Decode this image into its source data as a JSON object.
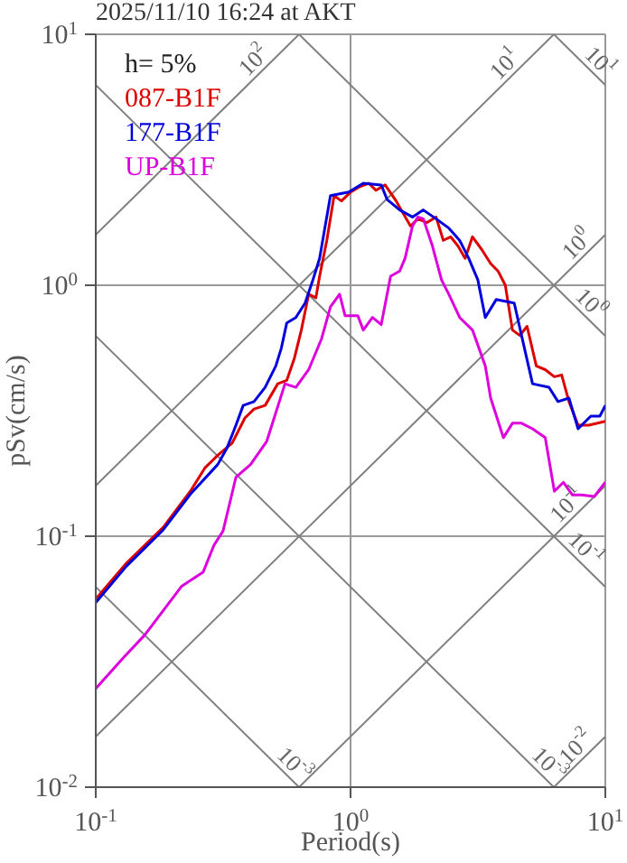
{
  "chart_data": {
    "type": "line",
    "title": "2025/11/10 16:24 at AKT",
    "xlabel": "Period(s)",
    "ylabel": "pSv(cm/s)",
    "legend_title": "h= 5%",
    "legend": "top left",
    "grid": true,
    "log": "xy",
    "xlim": [
      0.1,
      10
    ],
    "ylim": [
      0.01,
      10
    ],
    "xticks": [
      {
        "value": 0.1,
        "label": "10$^{-1}$"
      },
      {
        "value": 1,
        "label": "10$^{0}$"
      },
      {
        "value": 10,
        "label": "10$^{1}$"
      }
    ],
    "yticks": [
      {
        "value": 0.01,
        "label": "10$^{-2}$"
      },
      {
        "value": 0.1,
        "label": "10$^{-1}$"
      },
      {
        "value": 1,
        "label": "10$^{0}$"
      },
      {
        "value": 10,
        "label": "10$^{1}$"
      }
    ],
    "series": [
      {
        "name": "087-B1F",
        "color": "#dd0000",
        "x": [
          0.1,
          0.132,
          0.184,
          0.235,
          0.268,
          0.301,
          0.343,
          0.385,
          0.418,
          0.462,
          0.518,
          0.562,
          0.601,
          0.641,
          0.685,
          0.731,
          0.756,
          0.807,
          0.862,
          0.921,
          1.0,
          1.086,
          1.178,
          1.259,
          1.367,
          1.51,
          1.611,
          1.72,
          1.837,
          1.995,
          2.166,
          2.312,
          2.47,
          2.637,
          2.818,
          3.01,
          3.27,
          3.548,
          3.79,
          4.05,
          4.32,
          4.62,
          4.93,
          5.36,
          5.81,
          6.31,
          6.74,
          7.2,
          7.82,
          8.62,
          10
        ],
        "values": [
          0.0562,
          0.0781,
          0.1086,
          0.151,
          0.187,
          0.21,
          0.235,
          0.296,
          0.321,
          0.332,
          0.405,
          0.418,
          0.509,
          0.663,
          0.921,
          0.891,
          1.086,
          1.51,
          2.276,
          2.167,
          2.35,
          2.47,
          2.55,
          2.39,
          2.51,
          2.167,
          1.93,
          1.72,
          1.84,
          1.778,
          1.87,
          1.51,
          1.56,
          1.436,
          1.28,
          1.56,
          1.39,
          1.22,
          1.14,
          1.0,
          0.663,
          0.631,
          0.686,
          0.477,
          0.461,
          0.432,
          0.439,
          0.344,
          0.277,
          0.277,
          0.287
        ]
      },
      {
        "name": "177-B1F",
        "color": "#0000dd",
        "x": [
          0.1,
          0.132,
          0.184,
          0.235,
          0.301,
          0.327,
          0.355,
          0.379,
          0.418,
          0.462,
          0.509,
          0.535,
          0.562,
          0.61,
          0.663,
          0.708,
          0.756,
          0.834,
          0.984,
          1.122,
          1.32,
          1.39,
          1.56,
          1.75,
          1.93,
          2.166,
          2.43,
          2.68,
          2.91,
          3.16,
          3.38,
          3.73,
          4.39,
          4.69,
          5.18,
          6.01,
          6.52,
          7.2,
          7.82,
          8.77,
          9.52,
          10
        ],
        "values": [
          0.0544,
          0.076,
          0.106,
          0.147,
          0.193,
          0.224,
          0.277,
          0.332,
          0.344,
          0.392,
          0.477,
          0.562,
          0.708,
          0.744,
          0.849,
          1.033,
          1.28,
          2.276,
          2.35,
          2.55,
          2.51,
          2.2,
          1.995,
          1.87,
          1.995,
          1.84,
          1.69,
          1.51,
          1.28,
          1.05,
          0.744,
          0.877,
          0.849,
          0.631,
          0.405,
          0.392,
          0.344,
          0.355,
          0.268,
          0.301,
          0.301,
          0.332
        ]
      },
      {
        "name": "UP-B1F",
        "color": "#dd00dd",
        "x": [
          0.1,
          0.128,
          0.156,
          0.217,
          0.264,
          0.291,
          0.316,
          0.355,
          0.405,
          0.469,
          0.553,
          0.61,
          0.685,
          0.769,
          0.834,
          0.906,
          0.952,
          1.068,
          1.122,
          1.219,
          1.32,
          1.436,
          1.56,
          1.637,
          1.75,
          1.837,
          1.93,
          2.095,
          2.276,
          2.43,
          2.68,
          3.01,
          3.38,
          3.548,
          3.98,
          4.32,
          4.69,
          5.18,
          5.81,
          6.31,
          6.85,
          7.43,
          8.07,
          9.06,
          10
        ],
        "values": [
          0.0247,
          0.0327,
          0.0405,
          0.0631,
          0.072,
          0.0921,
          0.105,
          0.172,
          0.193,
          0.239,
          0.405,
          0.392,
          0.461,
          0.611,
          0.821,
          0.921,
          0.756,
          0.756,
          0.663,
          0.744,
          0.697,
          1.086,
          1.14,
          1.28,
          1.72,
          1.87,
          1.84,
          1.436,
          1.05,
          0.921,
          0.744,
          0.663,
          0.477,
          0.355,
          0.247,
          0.282,
          0.282,
          0.268,
          0.247,
          0.151,
          0.164,
          0.146,
          0.146,
          0.144,
          0.164
        ]
      },
      {
        "color": "#808080",
        "x": [
          0.1,
          0.628
        ],
        "values": [
          1.59,
          10
        ]
      },
      {
        "color": "#808080",
        "x": [
          0.1,
          6.28
        ],
        "values": [
          0.159,
          10
        ]
      },
      {
        "color": "#808080",
        "x": [
          0.1,
          10
        ],
        "values": [
          0.0159,
          1.59
        ]
      },
      {
        "color": "#808080",
        "x": [
          0.628,
          10
        ],
        "values": [
          0.01,
          0.159
        ]
      },
      {
        "color": "#808080",
        "x": [
          6.28,
          10
        ],
        "values": [
          0.01,
          0.0159
        ]
      },
      {
        "color": "#808080",
        "x": [
          6.28,
          10
        ],
        "values": [
          10,
          6.28
        ]
      },
      {
        "color": "#808080",
        "x": [
          0.628,
          10
        ],
        "values": [
          10,
          0.628
        ]
      },
      {
        "color": "#808080",
        "x": [
          0.1,
          10
        ],
        "values": [
          6.28,
          0.0628
        ]
      },
      {
        "color": "#808080",
        "x": [
          0.1,
          6.28
        ],
        "values": [
          0.628,
          0.01
        ]
      },
      {
        "color": "#808080",
        "x": [
          0.1,
          0.628
        ],
        "values": [
          0.0628,
          0.01
        ]
      }
    ],
    "annotations": [
      {
        "text": "10$^{2}$",
        "x": 0.454,
        "y": 7.23
      },
      {
        "text": "10$^{1}$",
        "x": 4.39,
        "y": 6.99
      },
      {
        "text": "10$^{1}$",
        "x": 8.77,
        "y": 7.16
      },
      {
        "text": "10$^{0}$",
        "x": 8.43,
        "y": 1.34
      },
      {
        "text": "10$^{0}$",
        "x": 8.07,
        "y": 0.779
      },
      {
        "text": "10$^{-1}$",
        "x": 7.69,
        "y": 0.1224
      },
      {
        "text": "10$^{-1}$",
        "x": 7.69,
        "y": 0.0817
      },
      {
        "text": "10$^{-3}$",
        "x": 0.553,
        "y": 0.01136
      },
      {
        "text": "10$^{-3}$",
        "x": 5.53,
        "y": 0.01136
      },
      {
        "text": "10$^{-2}$",
        "x": 8.34,
        "y": 0.01327
      }
    ]
  }
}
